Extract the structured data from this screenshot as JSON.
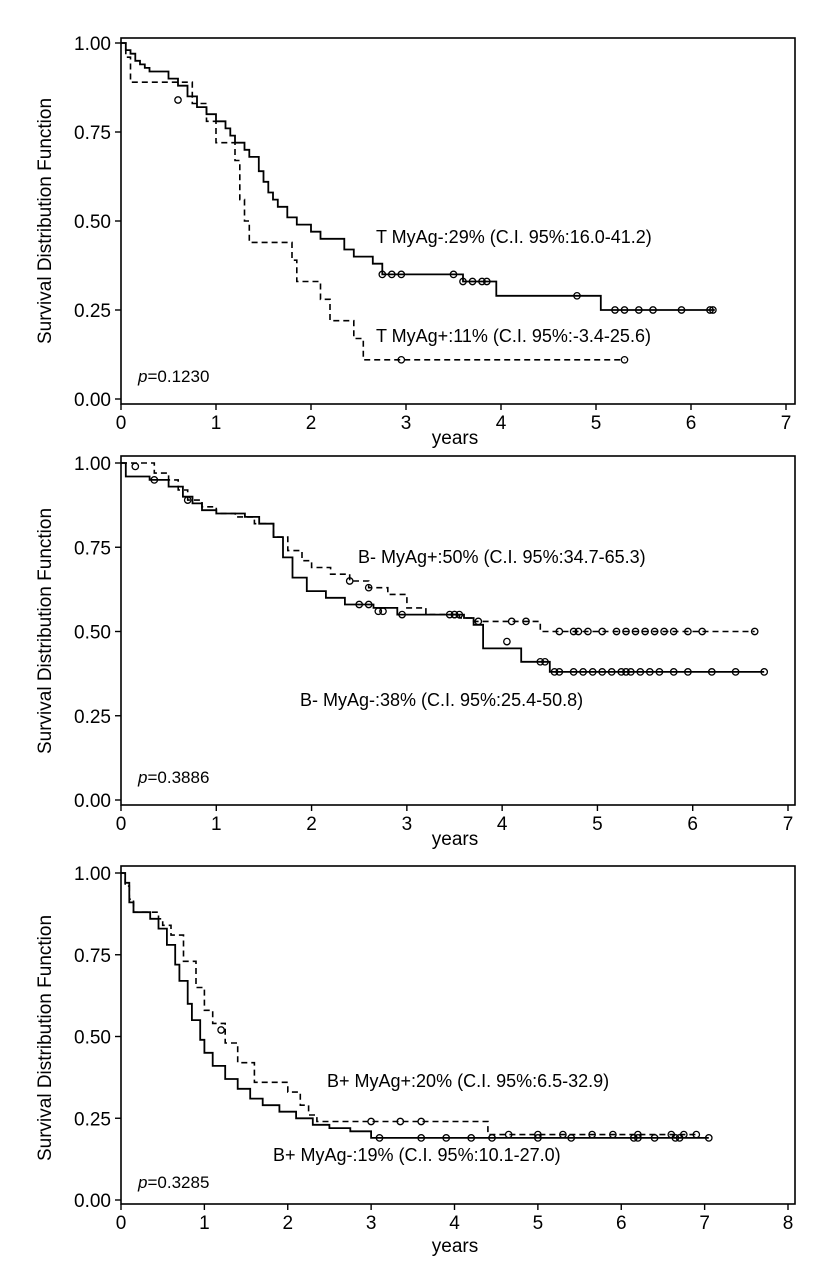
{
  "chart_data": [
    {
      "type": "line",
      "subtype": "kaplan-meier",
      "xlabel": "years",
      "ylabel": "Survival Distribution Function",
      "xlim": [
        0,
        7
      ],
      "ylim": [
        0,
        1
      ],
      "x_ticks": [
        "0",
        "1",
        "2",
        "3",
        "4",
        "5",
        "6",
        "7"
      ],
      "y_ticks": [
        "0.00",
        "0.25",
        "0.50",
        "0.75",
        "1.00"
      ],
      "p_value": {
        "prefix": "p",
        "value": "=0.1230"
      },
      "series": [
        {
          "name": "T MyAg-",
          "label": "T MyAg-:29% (C.I. 95%:16.0-41.2)",
          "style": "solid",
          "steps": [
            [
              0,
              1.0
            ],
            [
              0.05,
              0.98
            ],
            [
              0.1,
              0.97
            ],
            [
              0.15,
              0.95
            ],
            [
              0.2,
              0.94
            ],
            [
              0.25,
              0.93
            ],
            [
              0.3,
              0.92
            ],
            [
              0.5,
              0.9
            ],
            [
              0.6,
              0.88
            ],
            [
              0.7,
              0.85
            ],
            [
              0.8,
              0.82
            ],
            [
              0.9,
              0.8
            ],
            [
              1.0,
              0.78
            ],
            [
              1.1,
              0.76
            ],
            [
              1.15,
              0.74
            ],
            [
              1.2,
              0.72
            ],
            [
              1.3,
              0.7
            ],
            [
              1.35,
              0.68
            ],
            [
              1.45,
              0.64
            ],
            [
              1.5,
              0.61
            ],
            [
              1.55,
              0.58
            ],
            [
              1.6,
              0.56
            ],
            [
              1.65,
              0.54
            ],
            [
              1.75,
              0.51
            ],
            [
              1.85,
              0.49
            ],
            [
              2.0,
              0.47
            ],
            [
              2.1,
              0.45
            ],
            [
              2.35,
              0.42
            ],
            [
              2.45,
              0.4
            ],
            [
              2.65,
              0.38
            ],
            [
              2.75,
              0.35
            ],
            [
              3.6,
              0.33
            ],
            [
              3.95,
              0.29
            ],
            [
              5.05,
              0.25
            ],
            [
              6.25,
              0.25
            ]
          ],
          "censored": [
            [
              0.6,
              0.84
            ],
            [
              2.75,
              0.35
            ],
            [
              2.85,
              0.35
            ],
            [
              2.95,
              0.35
            ],
            [
              3.5,
              0.35
            ],
            [
              3.6,
              0.33
            ],
            [
              3.7,
              0.33
            ],
            [
              3.8,
              0.33
            ],
            [
              3.85,
              0.33
            ],
            [
              4.8,
              0.29
            ],
            [
              5.2,
              0.25
            ],
            [
              5.3,
              0.25
            ],
            [
              5.45,
              0.25
            ],
            [
              5.6,
              0.25
            ],
            [
              5.9,
              0.25
            ],
            [
              6.2,
              0.25
            ],
            [
              6.23,
              0.25
            ]
          ]
        },
        {
          "name": "T MyAg+",
          "label": "T MyAg+:11% (C.I. 95%:-3.4-25.6)",
          "style": "dashed",
          "steps": [
            [
              0,
              1.0
            ],
            [
              0.05,
              0.96
            ],
            [
              0.1,
              0.89
            ],
            [
              0.65,
              0.89
            ],
            [
              0.75,
              0.83
            ],
            [
              0.9,
              0.78
            ],
            [
              1.0,
              0.72
            ],
            [
              1.2,
              0.67
            ],
            [
              1.25,
              0.56
            ],
            [
              1.3,
              0.5
            ],
            [
              1.35,
              0.44
            ],
            [
              1.8,
              0.39
            ],
            [
              1.85,
              0.33
            ],
            [
              2.1,
              0.28
            ],
            [
              2.2,
              0.22
            ],
            [
              2.45,
              0.17
            ],
            [
              2.55,
              0.11
            ],
            [
              5.3,
              0.11
            ]
          ],
          "censored": [
            [
              2.95,
              0.11
            ],
            [
              5.3,
              0.11
            ]
          ]
        }
      ]
    },
    {
      "type": "line",
      "subtype": "kaplan-meier",
      "xlabel": "years",
      "ylabel": "Survival Distribution Function",
      "xlim": [
        0,
        7
      ],
      "ylim": [
        0,
        1
      ],
      "x_ticks": [
        "0",
        "1",
        "2",
        "3",
        "4",
        "5",
        "6",
        "7"
      ],
      "y_ticks": [
        "0.00",
        "0.25",
        "0.50",
        "0.75",
        "1.00"
      ],
      "p_value": {
        "prefix": "p",
        "value": "=0.3886"
      },
      "series": [
        {
          "name": "B- MyAg+",
          "label": "B- MyAg+:50% (C.I. 95%:34.7-65.3)",
          "style": "dashed",
          "steps": [
            [
              0,
              1.0
            ],
            [
              0.35,
              0.97
            ],
            [
              0.5,
              0.95
            ],
            [
              0.6,
              0.92
            ],
            [
              0.7,
              0.89
            ],
            [
              0.85,
              0.87
            ],
            [
              1.0,
              0.85
            ],
            [
              1.2,
              0.84
            ],
            [
              1.4,
              0.82
            ],
            [
              1.6,
              0.78
            ],
            [
              1.75,
              0.74
            ],
            [
              1.9,
              0.71
            ],
            [
              2.0,
              0.69
            ],
            [
              2.2,
              0.67
            ],
            [
              2.4,
              0.65
            ],
            [
              2.6,
              0.63
            ],
            [
              2.8,
              0.61
            ],
            [
              3.0,
              0.57
            ],
            [
              3.2,
              0.55
            ],
            [
              3.55,
              0.54
            ],
            [
              3.7,
              0.53
            ],
            [
              3.9,
              0.53
            ],
            [
              4.4,
              0.5
            ],
            [
              6.65,
              0.5
            ]
          ],
          "censored": [
            [
              0.15,
              0.99
            ],
            [
              0.7,
              0.89
            ],
            [
              2.4,
              0.65
            ],
            [
              2.6,
              0.63
            ],
            [
              3.5,
              0.55
            ],
            [
              3.55,
              0.55
            ],
            [
              3.75,
              0.53
            ],
            [
              4.1,
              0.53
            ],
            [
              4.25,
              0.53
            ],
            [
              4.6,
              0.5
            ],
            [
              4.75,
              0.5
            ],
            [
              4.8,
              0.5
            ],
            [
              4.9,
              0.5
            ],
            [
              5.05,
              0.5
            ],
            [
              5.2,
              0.5
            ],
            [
              5.3,
              0.5
            ],
            [
              5.4,
              0.5
            ],
            [
              5.5,
              0.5
            ],
            [
              5.6,
              0.5
            ],
            [
              5.7,
              0.5
            ],
            [
              5.8,
              0.5
            ],
            [
              5.95,
              0.5
            ],
            [
              6.1,
              0.5
            ],
            [
              6.65,
              0.5
            ]
          ]
        },
        {
          "name": "B- MyAg-",
          "label": "B- MyAg-:38% (C.I. 95%:25.4-50.8)",
          "style": "solid",
          "steps": [
            [
              0,
              1.0
            ],
            [
              0.05,
              0.96
            ],
            [
              0.3,
              0.95
            ],
            [
              0.5,
              0.93
            ],
            [
              0.65,
              0.9
            ],
            [
              0.75,
              0.88
            ],
            [
              0.85,
              0.86
            ],
            [
              1.0,
              0.85
            ],
            [
              1.3,
              0.84
            ],
            [
              1.45,
              0.82
            ],
            [
              1.6,
              0.78
            ],
            [
              1.7,
              0.72
            ],
            [
              1.8,
              0.66
            ],
            [
              1.95,
              0.62
            ],
            [
              2.15,
              0.6
            ],
            [
              2.35,
              0.58
            ],
            [
              2.65,
              0.57
            ],
            [
              2.9,
              0.55
            ],
            [
              3.6,
              0.54
            ],
            [
              3.7,
              0.52
            ],
            [
              3.8,
              0.45
            ],
            [
              4.2,
              0.41
            ],
            [
              4.5,
              0.38
            ],
            [
              6.75,
              0.38
            ]
          ],
          "censored": [
            [
              0.35,
              0.95
            ],
            [
              2.5,
              0.58
            ],
            [
              2.6,
              0.58
            ],
            [
              2.7,
              0.56
            ],
            [
              2.75,
              0.56
            ],
            [
              2.95,
              0.55
            ],
            [
              3.45,
              0.55
            ],
            [
              3.5,
              0.55
            ],
            [
              4.05,
              0.47
            ],
            [
              4.4,
              0.41
            ],
            [
              4.45,
              0.41
            ],
            [
              4.55,
              0.38
            ],
            [
              4.6,
              0.38
            ],
            [
              4.75,
              0.38
            ],
            [
              4.85,
              0.38
            ],
            [
              4.95,
              0.38
            ],
            [
              5.05,
              0.38
            ],
            [
              5.15,
              0.38
            ],
            [
              5.25,
              0.38
            ],
            [
              5.3,
              0.38
            ],
            [
              5.35,
              0.38
            ],
            [
              5.45,
              0.38
            ],
            [
              5.55,
              0.38
            ],
            [
              5.65,
              0.38
            ],
            [
              5.8,
              0.38
            ],
            [
              5.95,
              0.38
            ],
            [
              6.2,
              0.38
            ],
            [
              6.45,
              0.38
            ],
            [
              6.75,
              0.38
            ]
          ]
        }
      ]
    },
    {
      "type": "line",
      "subtype": "kaplan-meier",
      "xlabel": "years",
      "ylabel": "Survival Distribution Function",
      "xlim": [
        0,
        8
      ],
      "ylim": [
        0,
        1
      ],
      "x_ticks": [
        "0",
        "1",
        "2",
        "3",
        "4",
        "5",
        "6",
        "7",
        "8"
      ],
      "y_ticks": [
        "0.00",
        "0.25",
        "0.50",
        "0.75",
        "1.00"
      ],
      "p_value": {
        "prefix": "p",
        "value": "=0.3285"
      },
      "series": [
        {
          "name": "B+ MyAg+",
          "label": "B+ MyAg+:20% (C.I. 95%:6.5-32.9)",
          "style": "dashed",
          "steps": [
            [
              0,
              1.0
            ],
            [
              0.05,
              0.96
            ],
            [
              0.1,
              0.92
            ],
            [
              0.15,
              0.88
            ],
            [
              0.45,
              0.86
            ],
            [
              0.5,
              0.84
            ],
            [
              0.6,
              0.81
            ],
            [
              0.75,
              0.73
            ],
            [
              0.9,
              0.65
            ],
            [
              1.0,
              0.58
            ],
            [
              1.1,
              0.54
            ],
            [
              1.25,
              0.48
            ],
            [
              1.4,
              0.42
            ],
            [
              1.6,
              0.36
            ],
            [
              2.0,
              0.33
            ],
            [
              2.15,
              0.29
            ],
            [
              2.25,
              0.26
            ],
            [
              2.35,
              0.24
            ],
            [
              4.4,
              0.2
            ],
            [
              6.9,
              0.2
            ]
          ],
          "censored": [
            [
              1.2,
              0.52
            ],
            [
              3.0,
              0.24
            ],
            [
              3.35,
              0.24
            ],
            [
              3.6,
              0.24
            ],
            [
              4.65,
              0.2
            ],
            [
              5.0,
              0.2
            ],
            [
              5.3,
              0.2
            ],
            [
              5.65,
              0.2
            ],
            [
              5.9,
              0.2
            ],
            [
              6.2,
              0.2
            ],
            [
              6.6,
              0.2
            ],
            [
              6.75,
              0.2
            ],
            [
              6.9,
              0.2
            ]
          ]
        },
        {
          "name": "B+ MyAg-",
          "label": "B+ MyAg-:19% (C.I. 95%:10.1-27.0)",
          "style": "solid",
          "steps": [
            [
              0,
              1.0
            ],
            [
              0.05,
              0.97
            ],
            [
              0.1,
              0.91
            ],
            [
              0.15,
              0.88
            ],
            [
              0.35,
              0.86
            ],
            [
              0.45,
              0.83
            ],
            [
              0.55,
              0.78
            ],
            [
              0.65,
              0.72
            ],
            [
              0.7,
              0.67
            ],
            [
              0.8,
              0.6
            ],
            [
              0.85,
              0.55
            ],
            [
              0.95,
              0.49
            ],
            [
              1.0,
              0.45
            ],
            [
              1.1,
              0.41
            ],
            [
              1.25,
              0.37
            ],
            [
              1.4,
              0.34
            ],
            [
              1.55,
              0.31
            ],
            [
              1.7,
              0.29
            ],
            [
              1.9,
              0.27
            ],
            [
              2.1,
              0.25
            ],
            [
              2.3,
              0.23
            ],
            [
              2.5,
              0.22
            ],
            [
              2.75,
              0.21
            ],
            [
              3.0,
              0.19
            ],
            [
              7.05,
              0.19
            ]
          ],
          "censored": [
            [
              3.1,
              0.19
            ],
            [
              3.6,
              0.19
            ],
            [
              3.9,
              0.19
            ],
            [
              4.2,
              0.19
            ],
            [
              4.45,
              0.19
            ],
            [
              5.0,
              0.19
            ],
            [
              5.4,
              0.19
            ],
            [
              6.15,
              0.19
            ],
            [
              6.2,
              0.19
            ],
            [
              6.4,
              0.19
            ],
            [
              6.65,
              0.19
            ],
            [
              6.7,
              0.19
            ],
            [
              7.05,
              0.19
            ]
          ]
        }
      ]
    }
  ]
}
